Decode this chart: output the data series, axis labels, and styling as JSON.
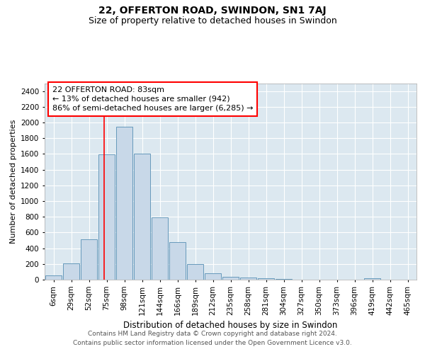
{
  "title": "22, OFFERTON ROAD, SWINDON, SN1 7AJ",
  "subtitle": "Size of property relative to detached houses in Swindon",
  "xlabel": "Distribution of detached houses by size in Swindon",
  "ylabel": "Number of detached properties",
  "footer_line1": "Contains HM Land Registry data © Crown copyright and database right 2024.",
  "footer_line2": "Contains public sector information licensed under the Open Government Licence v3.0.",
  "bar_labels": [
    "6sqm",
    "29sqm",
    "52sqm",
    "75sqm",
    "98sqm",
    "121sqm",
    "144sqm",
    "166sqm",
    "189sqm",
    "212sqm",
    "235sqm",
    "258sqm",
    "281sqm",
    "304sqm",
    "327sqm",
    "350sqm",
    "373sqm",
    "396sqm",
    "419sqm",
    "442sqm",
    "465sqm"
  ],
  "bar_values": [
    55,
    210,
    510,
    1595,
    1950,
    1600,
    790,
    480,
    195,
    85,
    35,
    25,
    20,
    5,
    0,
    0,
    0,
    0,
    20,
    0,
    0
  ],
  "bar_color": "#c8d8e8",
  "bar_edgecolor": "#6699bb",
  "annotation_text": "22 OFFERTON ROAD: 83sqm\n← 13% of detached houses are smaller (942)\n86% of semi-detached houses are larger (6,285) →",
  "annotation_box_color": "white",
  "annotation_box_edgecolor": "red",
  "ylim": [
    0,
    2500
  ],
  "yticks": [
    0,
    200,
    400,
    600,
    800,
    1000,
    1200,
    1400,
    1600,
    1800,
    2000,
    2200,
    2400
  ],
  "grid_color": "#c8d8e8",
  "bg_color": "#dce8f0",
  "title_fontsize": 10,
  "subtitle_fontsize": 9,
  "xlabel_fontsize": 8.5,
  "ylabel_fontsize": 8,
  "tick_fontsize": 7.5,
  "annotation_fontsize": 8,
  "footer_fontsize": 6.5
}
